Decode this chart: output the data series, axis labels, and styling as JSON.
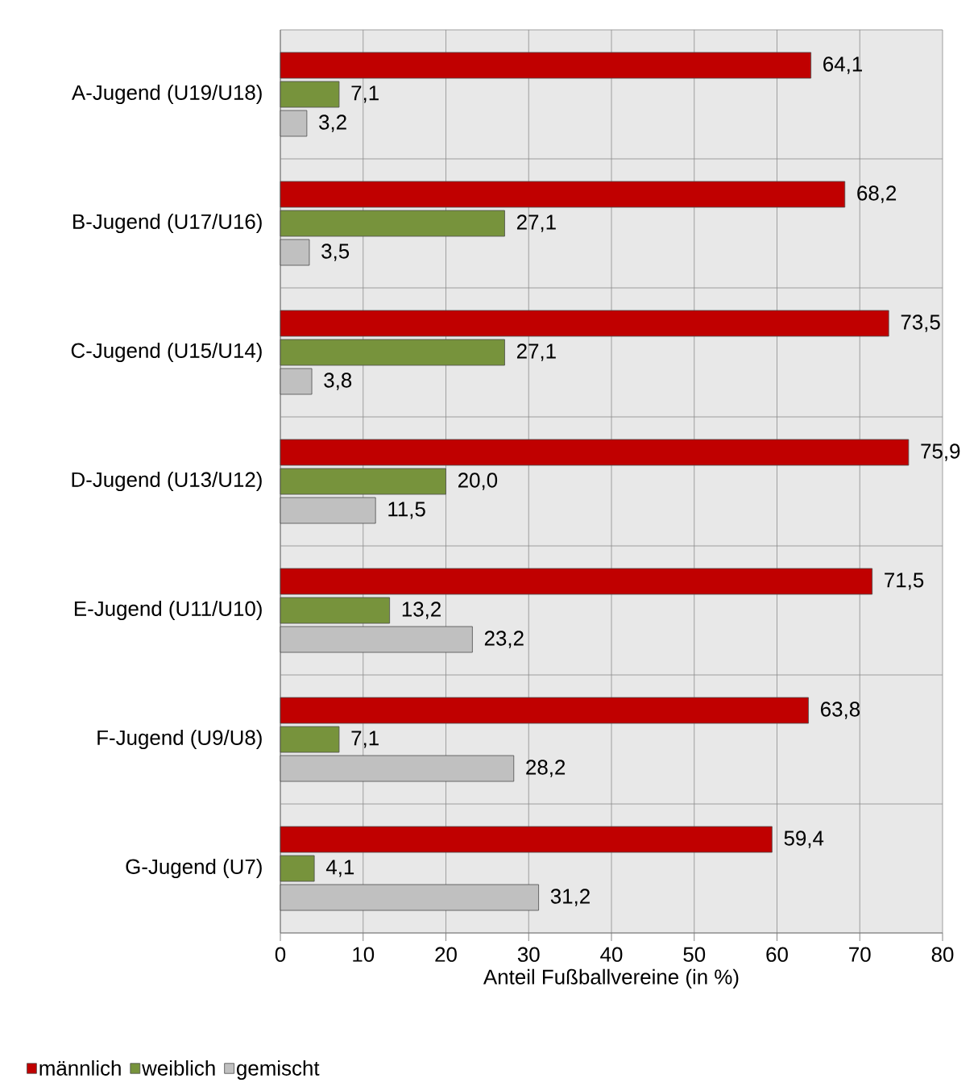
{
  "chart_data": {
    "type": "bar",
    "orientation": "horizontal",
    "categories": [
      "A-Jugend (U19/U18)",
      "B-Jugend (U17/U16)",
      "C-Jugend (U15/U14)",
      "D-Jugend (U13/U12)",
      "E-Jugend (U11/U10)",
      "F-Jugend (U9/U8)",
      "G-Jugend (U7)"
    ],
    "series": [
      {
        "name": "männlich",
        "color": "#c00000",
        "values": [
          64.1,
          68.2,
          73.5,
          75.9,
          71.5,
          63.8,
          59.4
        ],
        "value_labels": [
          "64,1",
          "68,2",
          "73,5",
          "75,9",
          "71,5",
          "63,8",
          "59,4"
        ]
      },
      {
        "name": "weiblich",
        "color": "#77933c",
        "values": [
          7.1,
          27.1,
          27.1,
          20.0,
          13.2,
          7.1,
          4.1
        ],
        "value_labels": [
          "7,1",
          "27,1",
          "27,1",
          "20,0",
          "13,2",
          "7,1",
          "4,1"
        ]
      },
      {
        "name": "gemischt",
        "color": "#c0c0c0",
        "values": [
          3.2,
          3.5,
          3.8,
          11.5,
          23.2,
          28.2,
          31.2
        ],
        "value_labels": [
          "3,2",
          "3,5",
          "3,8",
          "11,5",
          "23,2",
          "28,2",
          "31,2"
        ]
      }
    ],
    "xlabel": "Anteil Fußballvereine (in %)",
    "xlim": [
      0,
      80
    ],
    "xticks": [
      0,
      10,
      20,
      30,
      40,
      50,
      60,
      70,
      80
    ],
    "grid": true,
    "legend": "bottom left"
  }
}
